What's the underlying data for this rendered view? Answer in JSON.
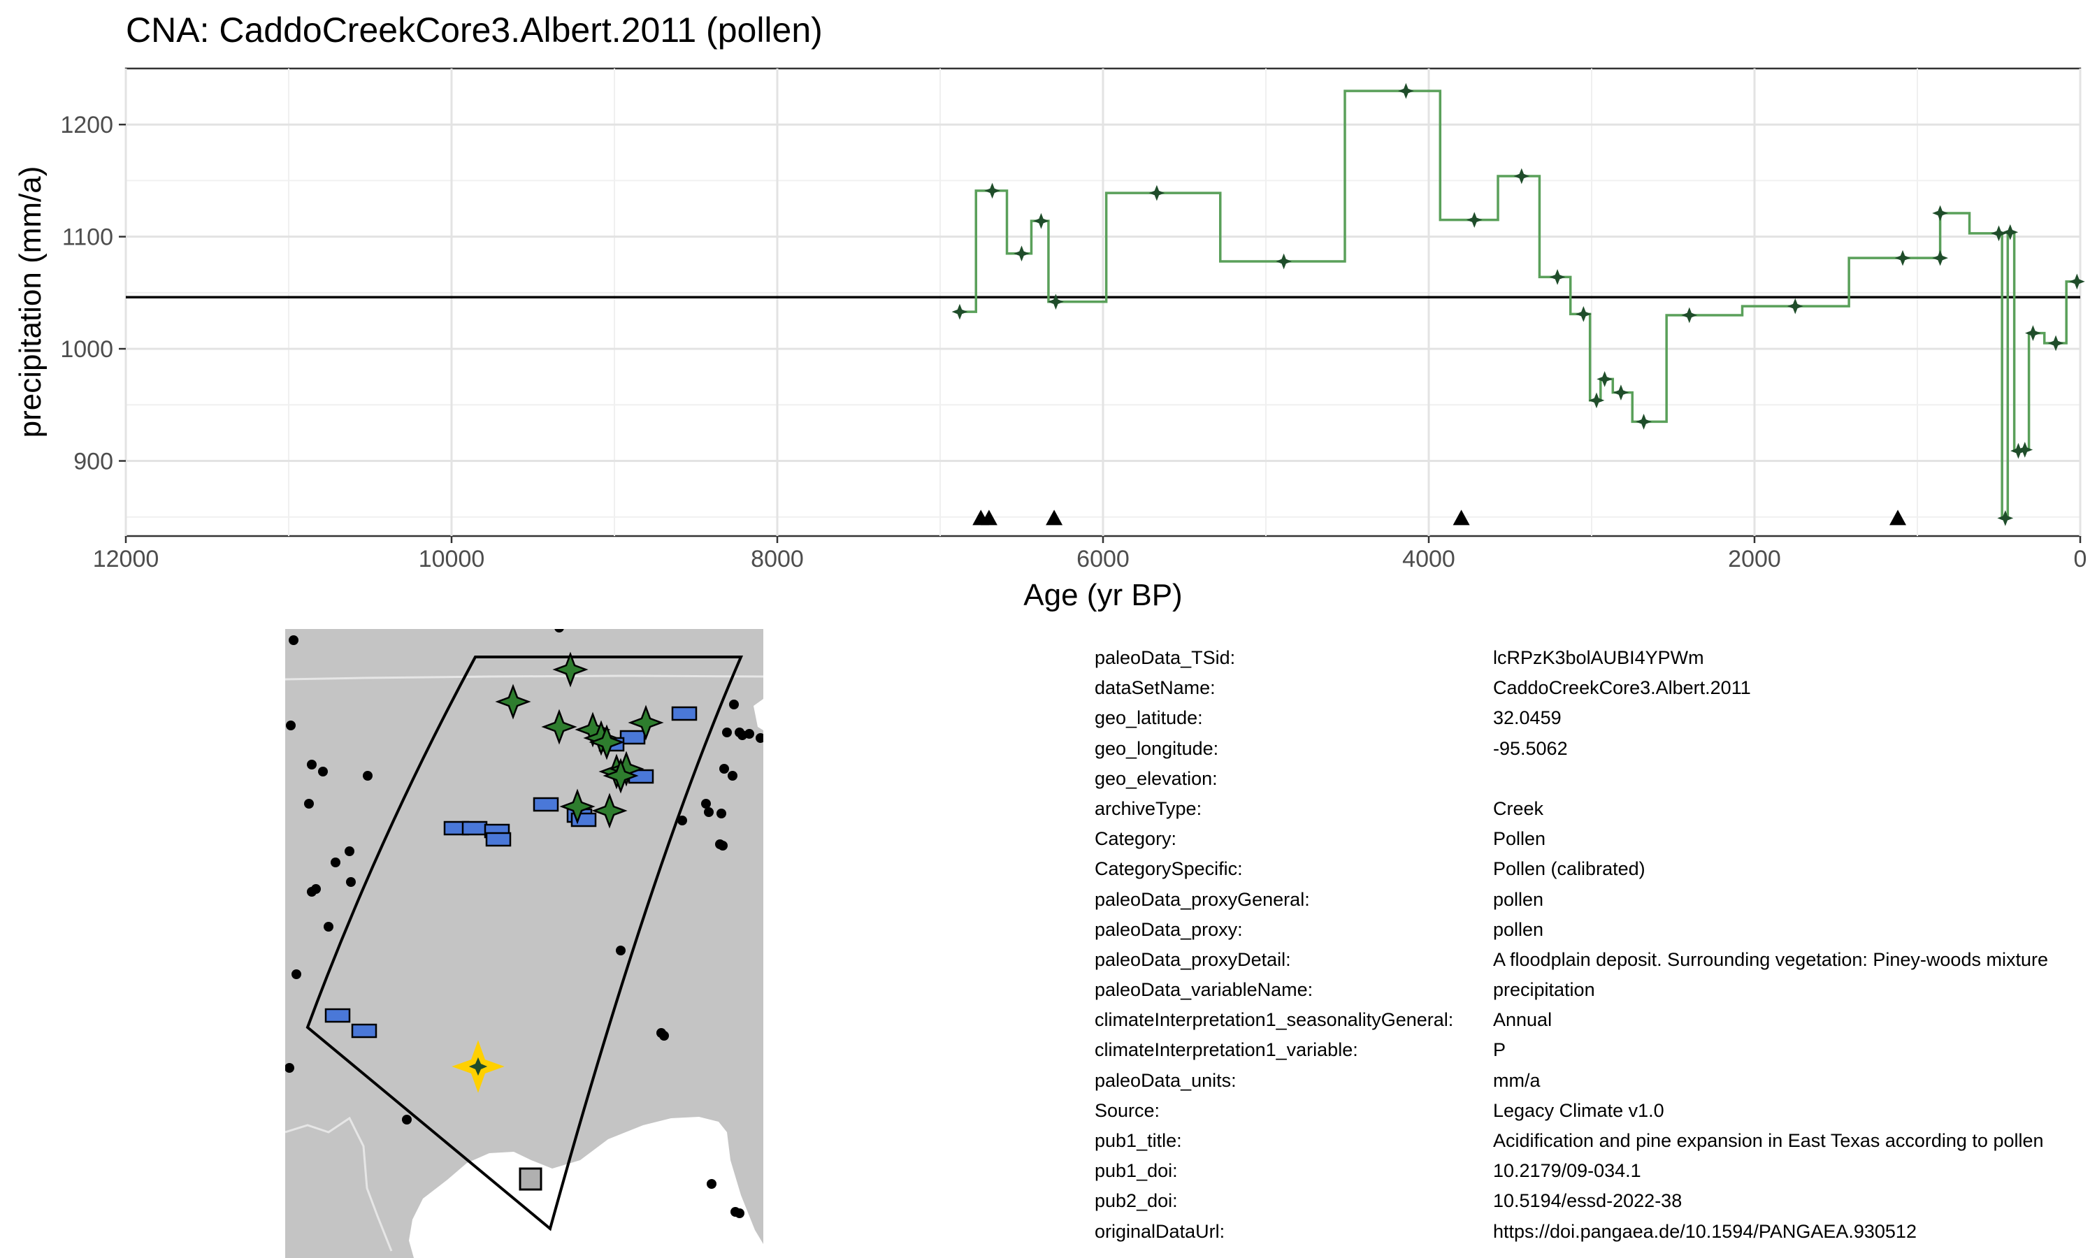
{
  "chart_data": {
    "type": "line",
    "title": "CNA: CaddoCreekCore3.Albert.2011 (pollen)",
    "xlabel": "Age (yr BP)",
    "ylabel": "precipitation (mm/a)",
    "xlim": [
      12000,
      0
    ],
    "ylim": [
      833,
      1250
    ],
    "x_ticks": [
      12000,
      10000,
      8000,
      6000,
      4000,
      2000,
      0
    ],
    "x_tick_labels": [
      "12000",
      "10000",
      "8000",
      "6000",
      "4000",
      "2000",
      "0"
    ],
    "y_ticks": [
      900,
      1000,
      1100,
      1200
    ],
    "y_tick_labels": [
      "900",
      "1000",
      "1100",
      "1200"
    ],
    "grid": true,
    "reference_line": 1046,
    "series": [
      {
        "color": "#5aa05a",
        "step": true,
        "points": [
          [
            6880,
            1033
          ],
          [
            6680,
            1141
          ],
          [
            6500,
            1085
          ],
          [
            6380,
            1114
          ],
          [
            6290,
            1042
          ],
          [
            5670,
            1139
          ],
          [
            4890,
            1078
          ],
          [
            4140,
            1230
          ],
          [
            3720,
            1115
          ],
          [
            3430,
            1154
          ],
          [
            3210,
            1064
          ],
          [
            3050,
            1031
          ],
          [
            2970,
            954
          ],
          [
            2920,
            973
          ],
          [
            2820,
            961
          ],
          [
            2680,
            935
          ],
          [
            2400,
            1030
          ],
          [
            1750,
            1038
          ],
          [
            1090,
            1081
          ],
          [
            860,
            1081
          ],
          [
            860,
            1121
          ],
          [
            500,
            1103
          ],
          [
            460,
            849
          ],
          [
            430,
            1104
          ],
          [
            380,
            909
          ],
          [
            340,
            910
          ],
          [
            290,
            1014
          ],
          [
            150,
            1005
          ],
          [
            20,
            1060
          ]
        ]
      }
    ],
    "markers": {
      "shape": "triangle",
      "y": 849,
      "x": [
        6750,
        6700,
        6300,
        3800,
        1120
      ]
    }
  },
  "map": {
    "land_color": "#c4c4c4",
    "sea_color": "#ffffff",
    "region_outline_color": "#000000",
    "site_color": "#000000",
    "star_color": "#2e7d2e",
    "rect_color": "#4a78d8",
    "gray_rect_color": "#b0b0b0",
    "highlight_color": "#ffd000"
  },
  "metadata": [
    {
      "key": "paleoData_TSid:",
      "value": "lcRPzK3bolAUBI4YPWm"
    },
    {
      "key": "dataSetName:",
      "value": "CaddoCreekCore3.Albert.2011"
    },
    {
      "key": "geo_latitude:",
      "value": "32.0459"
    },
    {
      "key": "geo_longitude:",
      "value": "-95.5062"
    },
    {
      "key": "geo_elevation:",
      "value": ""
    },
    {
      "key": "archiveType:",
      "value": "Creek"
    },
    {
      "key": "Category:",
      "value": "Pollen"
    },
    {
      "key": "CategorySpecific:",
      "value": "Pollen (calibrated)"
    },
    {
      "key": "paleoData_proxyGeneral:",
      "value": "pollen"
    },
    {
      "key": "paleoData_proxy:",
      "value": "pollen"
    },
    {
      "key": "paleoData_proxyDetail:",
      "value": "A floodplain deposit. Surrounding vegetation: Piney-woods mixture"
    },
    {
      "key": "paleoData_variableName:",
      "value": "precipitation"
    },
    {
      "key": "climateInterpretation1_seasonalityGeneral:",
      "value": "Annual"
    },
    {
      "key": "climateInterpretation1_variable:",
      "value": "P"
    },
    {
      "key": "paleoData_units:",
      "value": "mm/a"
    },
    {
      "key": "Source:",
      "value": "Legacy Climate v1.0"
    },
    {
      "key": "pub1_title:",
      "value": "Acidification and pine expansion in East Texas according to pollen"
    },
    {
      "key": "pub1_doi:",
      "value": "10.2179/09-034.1"
    },
    {
      "key": "pub2_doi:",
      "value": "10.5194/essd-2022-38"
    },
    {
      "key": "originalDataUrl:",
      "value": "https://doi.pangaea.de/10.1594/PANGAEA.930512"
    }
  ]
}
